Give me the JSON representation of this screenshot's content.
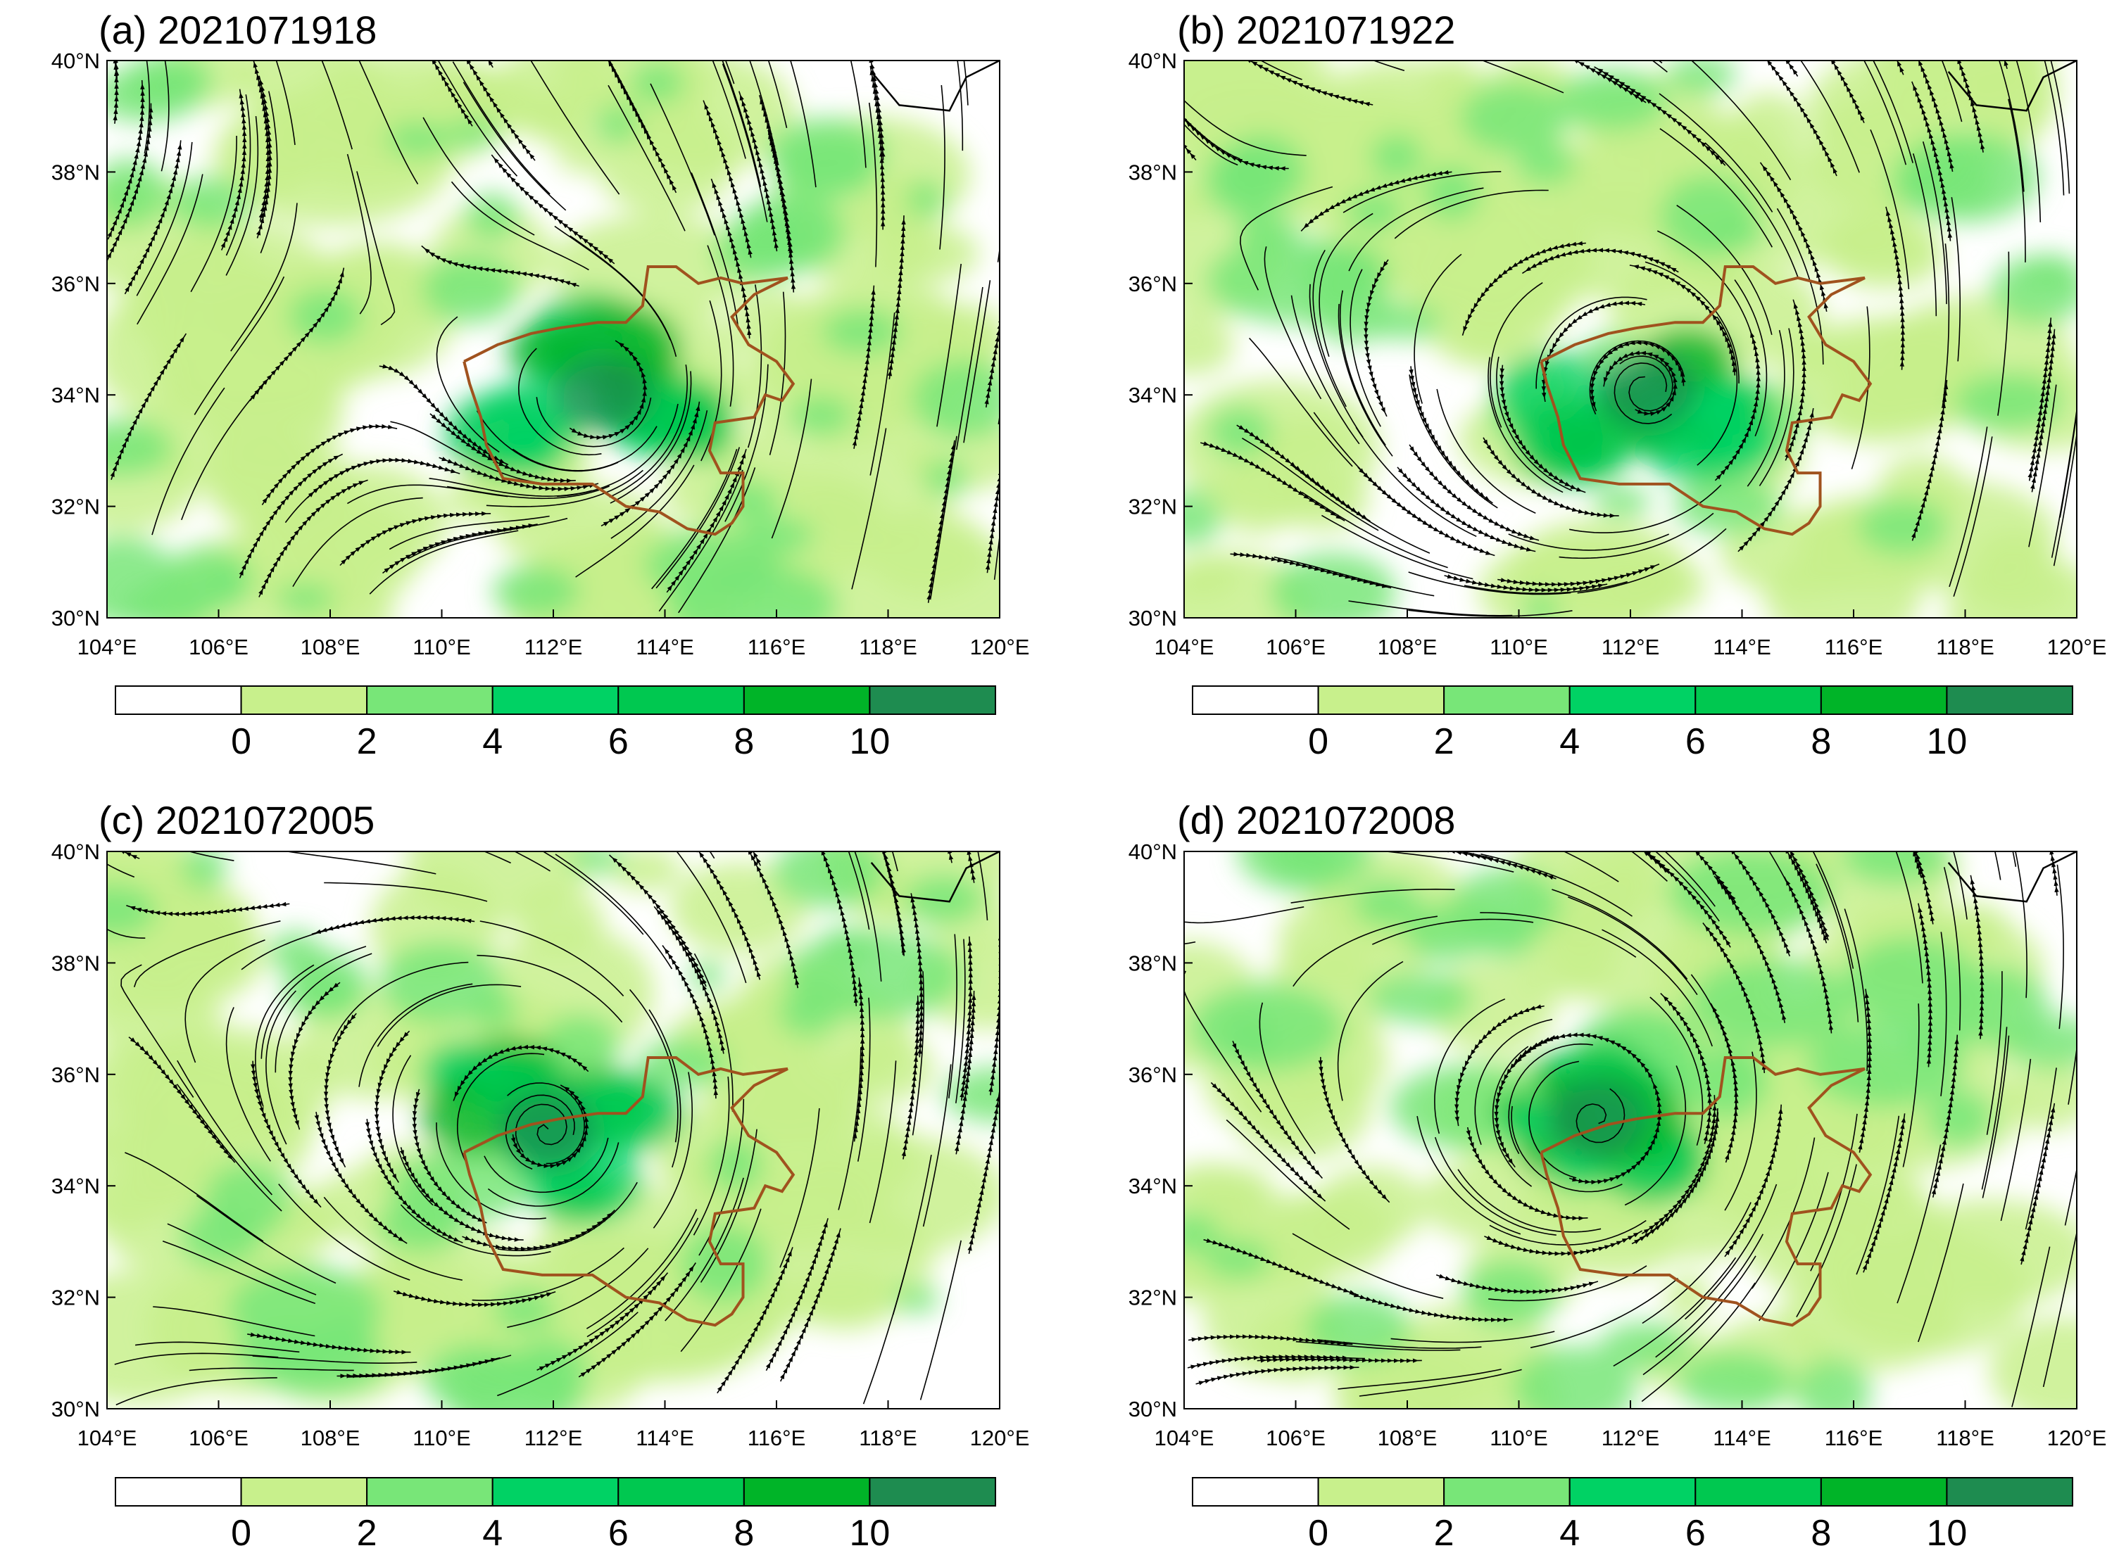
{
  "figure": {
    "x_ticks": [
      "104°E",
      "106°E",
      "108°E",
      "110°E",
      "112°E",
      "114°E",
      "116°E",
      "118°E",
      "120°E"
    ],
    "y_ticks": [
      "30°N",
      "32°N",
      "34°N",
      "36°N",
      "38°N",
      "40°N"
    ],
    "colorbar": {
      "labels": [
        "0",
        "2",
        "4",
        "6",
        "8",
        "10"
      ],
      "colors": [
        "#ffffff",
        "#c8f08c",
        "#78e678",
        "#00d264",
        "#00c850",
        "#00b428",
        "#1e8c50"
      ]
    },
    "panels": [
      {
        "id": "a",
        "title": "(a) 2021071918"
      },
      {
        "id": "b",
        "title": "(b) 2021071922"
      },
      {
        "id": "c",
        "title": "(c) 2021072005"
      },
      {
        "id": "d",
        "title": "(d) 2021072008"
      }
    ]
  },
  "map_data": {
    "extent": {
      "lon": [
        104,
        120
      ],
      "lat": [
        30,
        40
      ]
    },
    "province_outline_color": "#a0521e",
    "province_outline_lonlat": [
      [
        110.4,
        34.6
      ],
      [
        111.0,
        34.9
      ],
      [
        111.6,
        35.1
      ],
      [
        112.1,
        35.2
      ],
      [
        112.8,
        35.3
      ],
      [
        113.3,
        35.3
      ],
      [
        113.6,
        35.6
      ],
      [
        113.7,
        36.3
      ],
      [
        114.2,
        36.3
      ],
      [
        114.6,
        36.0
      ],
      [
        115.0,
        36.1
      ],
      [
        115.4,
        36.0
      ],
      [
        116.2,
        36.1
      ],
      [
        115.6,
        35.8
      ],
      [
        115.2,
        35.4
      ],
      [
        115.5,
        34.9
      ],
      [
        116.0,
        34.6
      ],
      [
        116.3,
        34.2
      ],
      [
        116.1,
        33.9
      ],
      [
        115.8,
        34.0
      ],
      [
        115.6,
        33.6
      ],
      [
        114.9,
        33.5
      ],
      [
        114.8,
        33.0
      ],
      [
        115.0,
        32.6
      ],
      [
        115.4,
        32.6
      ],
      [
        115.4,
        32.0
      ],
      [
        115.2,
        31.7
      ],
      [
        114.9,
        31.5
      ],
      [
        114.4,
        31.6
      ],
      [
        113.9,
        31.9
      ],
      [
        113.3,
        32.0
      ],
      [
        112.7,
        32.4
      ],
      [
        111.8,
        32.4
      ],
      [
        111.1,
        32.5
      ],
      [
        110.8,
        33.1
      ],
      [
        110.7,
        33.6
      ],
      [
        110.5,
        34.2
      ],
      [
        110.4,
        34.6
      ]
    ],
    "centers": [
      {
        "panel": "a",
        "lon": 112.9,
        "lat": 34.0,
        "type": "shear"
      },
      {
        "panel": "b",
        "lon": 112.3,
        "lat": 34.1,
        "type": "vortex"
      },
      {
        "panel": "c",
        "lon": 111.9,
        "lat": 35.0,
        "type": "vortex"
      },
      {
        "panel": "d",
        "lon": 111.4,
        "lat": 35.2,
        "type": "vortex"
      }
    ]
  }
}
